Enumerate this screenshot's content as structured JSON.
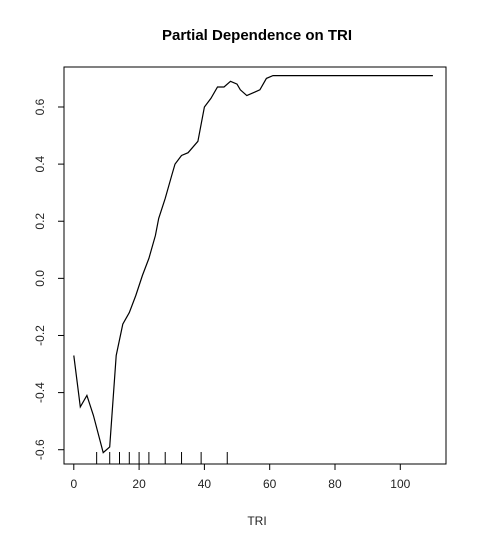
{
  "chart_data": {
    "type": "line",
    "title": "Partial Dependence on TRI",
    "xlabel": "TRI",
    "ylabel": "",
    "xlim": [
      -3,
      114
    ],
    "ylim": [
      -0.65,
      0.74
    ],
    "x_ticks": [
      0,
      20,
      40,
      60,
      80,
      100
    ],
    "y_ticks": [
      -0.6,
      -0.4,
      -0.2,
      0.0,
      0.2,
      0.4,
      0.6
    ],
    "x_tick_labels": [
      "0",
      "20",
      "40",
      "60",
      "80",
      "100"
    ],
    "y_tick_labels": [
      "-0.6",
      "-0.4",
      "-0.2",
      "0.0",
      "0.2",
      "0.4",
      "0.6"
    ],
    "grid": false,
    "series": [
      {
        "color": "#000000",
        "x": [
          0,
          2,
          4,
          6,
          9,
          11,
          13,
          15,
          17,
          19,
          21,
          23,
          25,
          26,
          28,
          30,
          31,
          33,
          35,
          38,
          40,
          42,
          44,
          46,
          48,
          50,
          51,
          53,
          55,
          57,
          59,
          61,
          65,
          70,
          75,
          80,
          90,
          100,
          110
        ],
        "y": [
          -0.27,
          -0.45,
          -0.41,
          -0.48,
          -0.61,
          -0.59,
          -0.27,
          -0.16,
          -0.12,
          -0.06,
          0.01,
          0.07,
          0.15,
          0.21,
          0.28,
          0.36,
          0.4,
          0.43,
          0.44,
          0.48,
          0.6,
          0.63,
          0.67,
          0.67,
          0.69,
          0.68,
          0.66,
          0.64,
          0.65,
          0.66,
          0.7,
          0.71,
          0.71,
          0.71,
          0.71,
          0.71,
          0.71,
          0.71,
          0.71
        ]
      }
    ],
    "rug": [
      7,
      11,
      14,
      17,
      20,
      23,
      28,
      33,
      39,
      47
    ]
  }
}
